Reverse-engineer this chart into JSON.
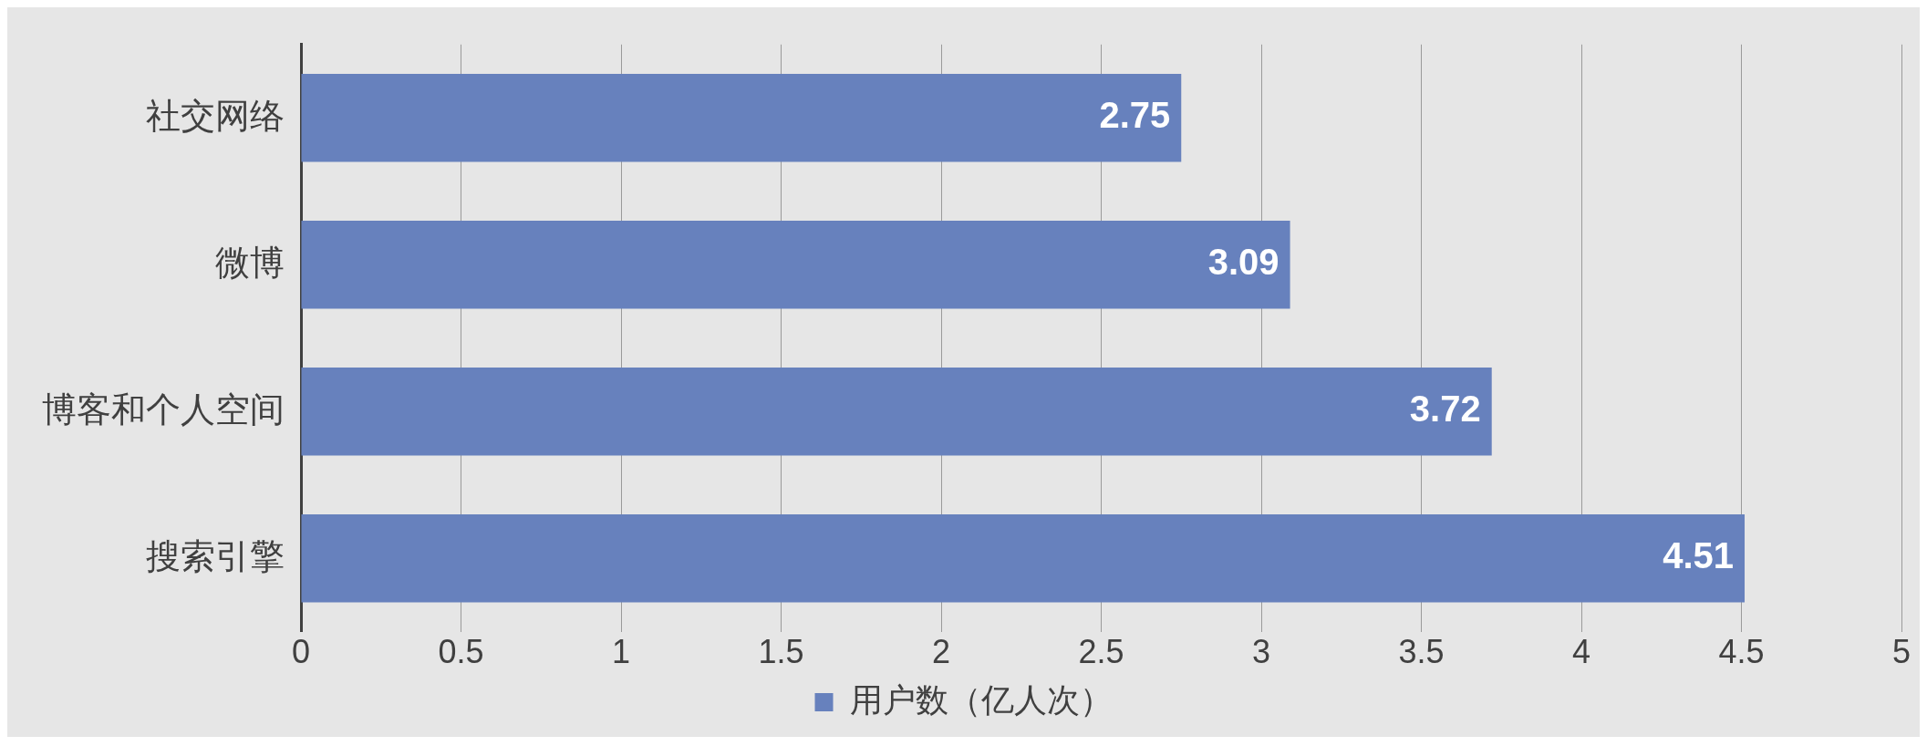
{
  "chart_data": {
    "type": "bar",
    "orientation": "horizontal",
    "categories": [
      "社交网络",
      "微博",
      "博客和个人空间",
      "搜索引擎"
    ],
    "series": [
      {
        "name": "用户数（亿人次）",
        "color": "#6781bd",
        "values": [
          2.75,
          3.09,
          3.72,
          4.51
        ]
      }
    ],
    "xlim": [
      0,
      5
    ],
    "xticks": [
      0,
      0.5,
      1,
      1.5,
      2,
      2.5,
      3,
      3.5,
      4,
      4.5,
      5
    ],
    "grid": "x",
    "legend": "bottom",
    "data_labels": true
  }
}
